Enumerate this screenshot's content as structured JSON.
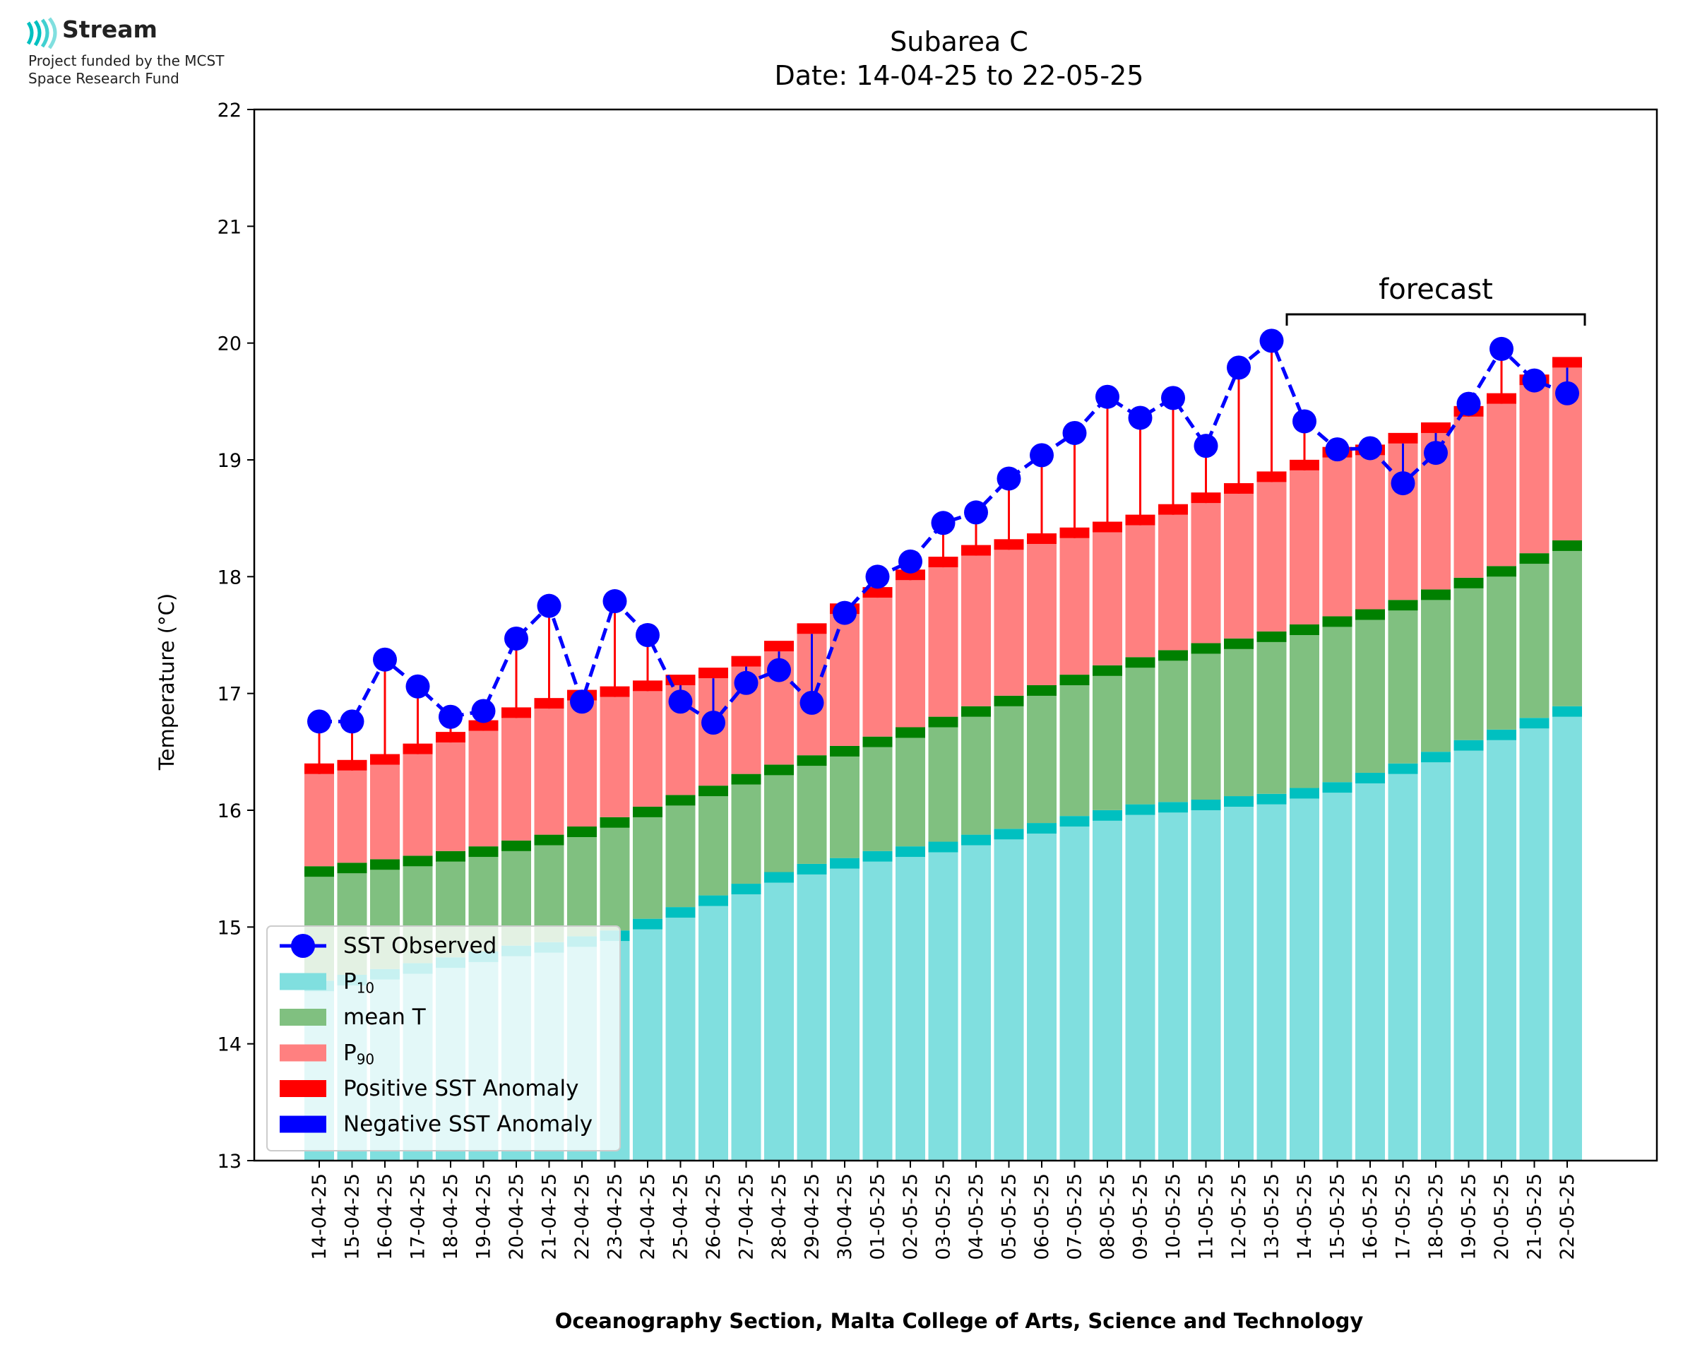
{
  "logo": {
    "name": "Stream",
    "line1": "Project funded by the MCST",
    "line2": "Space Research Fund"
  },
  "colors": {
    "p10": "#80dfdf",
    "p10_cap": "#00c0c0",
    "mean": "#80c080",
    "mean_cap": "#008000",
    "p90": "#ff8080",
    "p90_cap": "#ff0000",
    "sst": "#0000ff",
    "anomaly_pos": "#ff0000",
    "anomaly_neg": "#0000ff"
  },
  "chart_data": {
    "type": "bar",
    "title": "Subarea C",
    "subtitle": "Date: 14-04-25 to 22-05-25",
    "xlabel": "Oceanography Section, Malta College of Arts, Science and Technology",
    "ylabel": "Temperature (°C)",
    "ylim": [
      13,
      22
    ],
    "yticks": [
      13,
      14,
      15,
      16,
      17,
      18,
      19,
      20,
      21,
      22
    ],
    "grid": false,
    "legend_position": "lower-left",
    "forecast_label": "forecast",
    "forecast_range": [
      "14-05-25",
      "22-05-25"
    ],
    "categories": [
      "14-04-25",
      "15-04-25",
      "16-04-25",
      "17-04-25",
      "18-04-25",
      "19-04-25",
      "20-04-25",
      "21-04-25",
      "22-04-25",
      "23-04-25",
      "24-04-25",
      "25-04-25",
      "26-04-25",
      "27-04-25",
      "28-04-25",
      "29-04-25",
      "30-04-25",
      "01-05-25",
      "02-05-25",
      "03-05-25",
      "04-05-25",
      "05-05-25",
      "06-05-25",
      "07-05-25",
      "08-05-25",
      "09-05-25",
      "10-05-25",
      "11-05-25",
      "12-05-25",
      "13-05-25",
      "14-05-25",
      "15-05-25",
      "16-05-25",
      "17-05-25",
      "18-05-25",
      "19-05-25",
      "20-05-25",
      "21-05-25",
      "22-05-25"
    ],
    "legend": [
      {
        "label": "SST Observed",
        "kind": "line"
      },
      {
        "label": "P",
        "sub": "10",
        "kind": "p10"
      },
      {
        "label": "mean T",
        "kind": "mean"
      },
      {
        "label": "P",
        "sub": "90",
        "kind": "p90"
      },
      {
        "label": "Positive SST Anomaly",
        "kind": "pos"
      },
      {
        "label": "Negative SST Anomaly",
        "kind": "neg"
      }
    ],
    "series": [
      {
        "name": "P10",
        "values": [
          14.45,
          14.5,
          14.55,
          14.6,
          14.65,
          14.7,
          14.75,
          14.78,
          14.83,
          14.88,
          14.98,
          15.08,
          15.18,
          15.28,
          15.38,
          15.45,
          15.5,
          15.56,
          15.6,
          15.64,
          15.7,
          15.75,
          15.8,
          15.86,
          15.91,
          15.96,
          15.98,
          16.0,
          16.03,
          16.05,
          16.1,
          16.15,
          16.23,
          16.31,
          16.41,
          16.51,
          16.6,
          16.7,
          16.8
        ]
      },
      {
        "name": "mean T",
        "values": [
          15.43,
          15.46,
          15.49,
          15.52,
          15.56,
          15.6,
          15.65,
          15.7,
          15.77,
          15.85,
          15.94,
          16.04,
          16.12,
          16.22,
          16.3,
          16.38,
          16.46,
          16.54,
          16.62,
          16.71,
          16.8,
          16.89,
          16.98,
          17.07,
          17.15,
          17.22,
          17.28,
          17.34,
          17.38,
          17.44,
          17.5,
          17.57,
          17.63,
          17.71,
          17.8,
          17.9,
          18.0,
          18.11,
          18.22
        ]
      },
      {
        "name": "P90",
        "values": [
          16.31,
          16.34,
          16.39,
          16.48,
          16.58,
          16.68,
          16.79,
          16.87,
          16.94,
          16.97,
          17.02,
          17.07,
          17.13,
          17.23,
          17.36,
          17.51,
          17.68,
          17.82,
          17.97,
          18.08,
          18.18,
          18.23,
          18.28,
          18.33,
          18.38,
          18.44,
          18.53,
          18.63,
          18.71,
          18.81,
          18.91,
          19.02,
          19.04,
          19.14,
          19.23,
          19.37,
          19.48,
          19.64,
          19.79
        ]
      },
      {
        "name": "SST Observed",
        "values": [
          16.76,
          16.76,
          17.29,
          17.06,
          16.8,
          16.85,
          17.47,
          17.75,
          16.93,
          17.79,
          17.5,
          16.93,
          16.75,
          17.09,
          17.2,
          16.92,
          17.69,
          18.0,
          18.13,
          18.46,
          18.55,
          18.84,
          19.04,
          19.23,
          19.54,
          19.36,
          19.53,
          19.12,
          19.79,
          20.02,
          19.33,
          19.09,
          19.1,
          18.8,
          19.06,
          19.48,
          19.95,
          19.68,
          19.57
        ]
      }
    ]
  }
}
